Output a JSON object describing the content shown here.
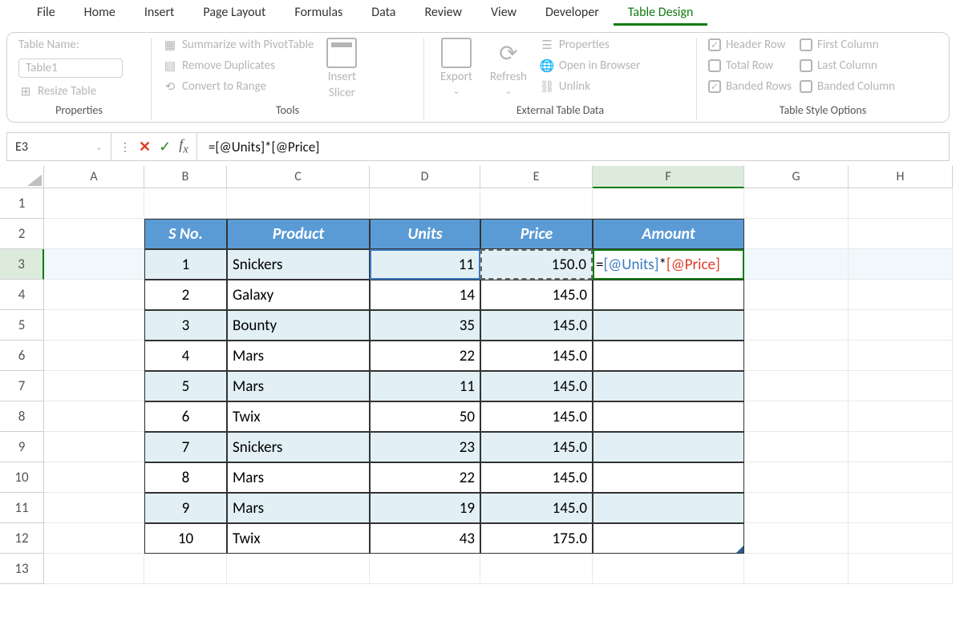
{
  "menu": {
    "tabs": [
      "File",
      "Home",
      "Insert",
      "Page Layout",
      "Formulas",
      "Data",
      "Review",
      "View",
      "Developer",
      "Table Design"
    ],
    "active": 9
  },
  "ribbon": {
    "properties": {
      "label": "Properties",
      "name_label": "Table Name:",
      "name_value": "Table1",
      "resize": "Resize Table"
    },
    "tools": {
      "label": "Tools",
      "pivot": "Summarize with PivotTable",
      "dup": "Remove Duplicates",
      "convert": "Convert to Range",
      "slicer": "Insert Slicer"
    },
    "external": {
      "label": "External Table Data",
      "export": "Export",
      "refresh": "Refresh",
      "props": "Properties",
      "browser": "Open in Browser",
      "unlink": "Unlink"
    },
    "style": {
      "label": "Table Style Options",
      "header": "Header Row",
      "total": "Total Row",
      "banded_rows": "Banded Rows",
      "first_col": "First Column",
      "last_col": "Last Column",
      "banded_cols": "Banded Column"
    }
  },
  "fbar": {
    "cell": "E3",
    "formula": "=[@Units]*[@Price]"
  },
  "cols": [
    "A",
    "B",
    "C",
    "D",
    "E",
    "F",
    "G",
    "H"
  ],
  "rows": [
    "1",
    "2",
    "3",
    "4",
    "5",
    "6",
    "7",
    "8",
    "9",
    "10",
    "11",
    "12",
    "13"
  ],
  "table": {
    "headers": [
      "S No.",
      "Product",
      "Units",
      "Price",
      "Amount"
    ],
    "rows": [
      {
        "sno": "1",
        "product": "Snickers",
        "units": "11",
        "price": "150.0",
        "amount": ""
      },
      {
        "sno": "2",
        "product": "Galaxy",
        "units": "14",
        "price": "145.0",
        "amount": ""
      },
      {
        "sno": "3",
        "product": "Bounty",
        "units": "35",
        "price": "145.0",
        "amount": ""
      },
      {
        "sno": "4",
        "product": "Mars",
        "units": "22",
        "price": "145.0",
        "amount": ""
      },
      {
        "sno": "5",
        "product": "Mars",
        "units": "11",
        "price": "145.0",
        "amount": ""
      },
      {
        "sno": "6",
        "product": "Twix",
        "units": "50",
        "price": "145.0",
        "amount": ""
      },
      {
        "sno": "7",
        "product": "Snickers",
        "units": "23",
        "price": "145.0",
        "amount": ""
      },
      {
        "sno": "8",
        "product": "Mars",
        "units": "22",
        "price": "145.0",
        "amount": ""
      },
      {
        "sno": "9",
        "product": "Mars",
        "units": "19",
        "price": "145.0",
        "amount": ""
      },
      {
        "sno": "10",
        "product": "Twix",
        "units": "43",
        "price": "175.0",
        "amount": ""
      }
    ],
    "colors": {
      "header_bg": "#5b9bd5",
      "band_bg": "#e2f0f5",
      "border": "#333333"
    }
  },
  "formula_parts": {
    "eq": "=",
    "ref1": "[@Units]",
    "op": "*",
    "ref2": "[@Price]"
  }
}
